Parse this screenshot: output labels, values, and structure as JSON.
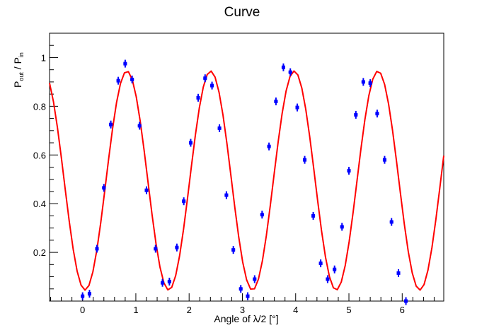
{
  "chart_data": {
    "type": "scatter",
    "title": "Curve",
    "xlabel": "Angle of λ/2 [°]",
    "ylabel": {
      "main": "P",
      "sub1": "out",
      "mid": " / P",
      "sub2": "in"
    },
    "xlim": [
      -0.62,
      6.78
    ],
    "ylim": [
      0.0,
      1.1
    ],
    "x_ticks": [
      0,
      1,
      2,
      3,
      4,
      5,
      6
    ],
    "x_tick_labels": [
      "0",
      "1",
      "2",
      "3",
      "4",
      "5",
      "6"
    ],
    "y_ticks": [
      0.2,
      0.4,
      0.6,
      0.8,
      1.0
    ],
    "y_tick_labels": [
      "0.2",
      "0.4",
      "0.6",
      "0.8",
      "1"
    ],
    "grid": false,
    "colors": {
      "data": "#0000ff",
      "fit": "#ff0000",
      "axes": "#000000"
    },
    "series": [
      {
        "kind": "points_with_errors",
        "x": [
          0.0,
          0.13,
          0.27,
          0.4,
          0.53,
          0.67,
          0.8,
          0.93,
          1.07,
          1.2,
          1.37,
          1.5,
          1.63,
          1.77,
          1.9,
          2.03,
          2.17,
          2.3,
          2.43,
          2.57,
          2.7,
          2.83,
          2.97,
          3.1,
          3.23,
          3.37,
          3.5,
          3.63,
          3.77,
          3.9,
          4.03,
          4.17,
          4.33,
          4.47,
          4.6,
          4.73,
          4.87,
          5.0,
          5.13,
          5.27,
          5.4,
          5.53,
          5.67,
          5.8,
          5.93,
          6.07
        ],
        "y": [
          0.02,
          0.03,
          0.215,
          0.465,
          0.725,
          0.905,
          0.975,
          0.91,
          0.72,
          0.455,
          0.215,
          0.075,
          0.08,
          0.22,
          0.41,
          0.65,
          0.835,
          0.915,
          0.885,
          0.71,
          0.435,
          0.21,
          0.05,
          0.02,
          0.09,
          0.355,
          0.635,
          0.82,
          0.96,
          0.94,
          0.795,
          0.58,
          0.35,
          0.155,
          0.09,
          0.13,
          0.305,
          0.535,
          0.765,
          0.9,
          0.895,
          0.77,
          0.58,
          0.325,
          0.115,
          0.0
        ],
        "yerr": 0.016
      },
      {
        "kind": "fit_curve",
        "formula": "0.495 + 0.45*cos(4*(x - 0.8325))",
        "x_range": [
          -0.62,
          6.78
        ]
      }
    ]
  }
}
